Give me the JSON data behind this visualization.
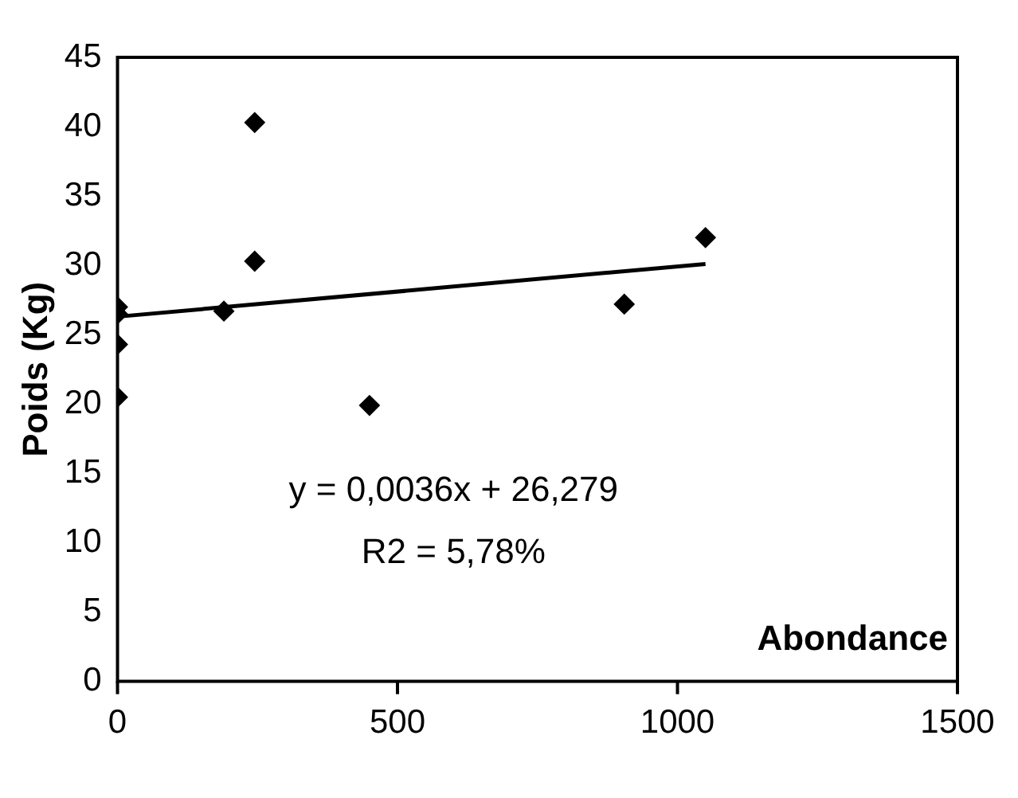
{
  "chart_data": {
    "type": "scatter",
    "ylabel": "Poids (Kg)",
    "xlabel": "Abondance",
    "xlim": [
      0,
      1500
    ],
    "xticks": [
      0,
      500,
      1000,
      1500
    ],
    "ylim": [
      0,
      45
    ],
    "yticks": [
      0,
      5,
      10,
      15,
      20,
      25,
      30,
      35,
      40,
      45
    ],
    "grid": false,
    "legend": false,
    "marker": "diamond",
    "series": [
      {
        "color": "#000000",
        "x": [
          0,
          0,
          0,
          0,
          190,
          245,
          245,
          450,
          905,
          1050
        ],
        "values": [
          27,
          26.5,
          24.3,
          20.5,
          26.7,
          40.3,
          30.3,
          19.9,
          27.2,
          32
        ]
      },
      {
        "type": "line",
        "color": "#000000",
        "marker": "none",
        "x": [
          0,
          1050
        ],
        "values": [
          26.3,
          30.1
        ]
      }
    ],
    "annotations": [
      "y = 0,0036x + 26,279",
      "R2 = 5,78%"
    ]
  }
}
